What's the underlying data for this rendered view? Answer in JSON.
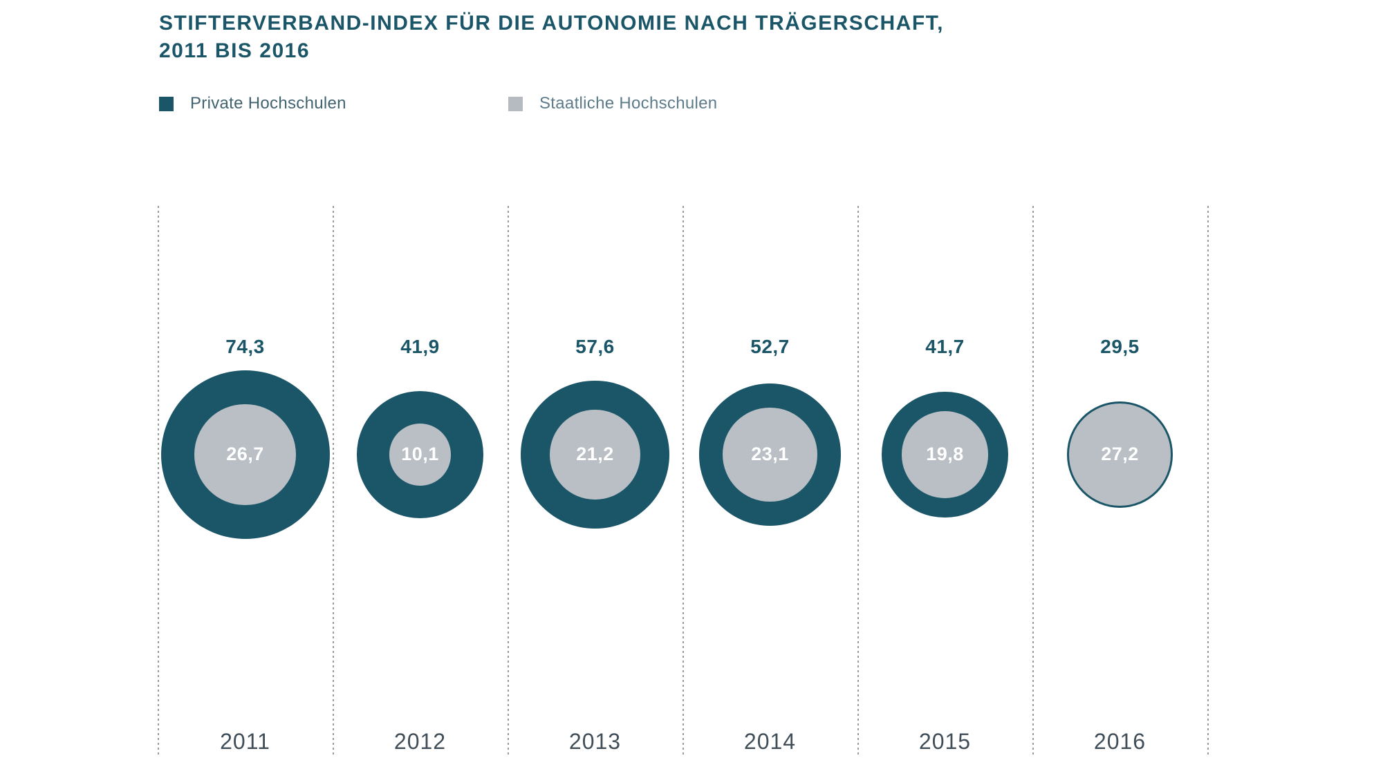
{
  "title": {
    "line1": "STIFTERVERBAND-INDEX FÜR DIE AUTONOMIE NACH TRÄGERSCHAFT,",
    "line2": "2011 BIS 2016"
  },
  "legend": {
    "items": [
      {
        "label": "Private Hochschulen",
        "color": "#1a5568",
        "text_color": "#41626f"
      },
      {
        "label": "Staatliche Hochschulen",
        "color": "#b5bbc1",
        "text_color": "#5d7b8a"
      }
    ]
  },
  "chart_data": {
    "type": "bubble",
    "variant": "nested-circles-per-category",
    "title": "STIFTERVERBAND-INDEX FÜR DIE AUTONOMIE NACH TRÄGERSCHAFT, 2011 BIS 2016",
    "categories": [
      "2011",
      "2012",
      "2013",
      "2014",
      "2015",
      "2016"
    ],
    "series": [
      {
        "name": "Private Hochschulen",
        "color": "#1a5568",
        "values": [
          74.3,
          41.9,
          57.6,
          52.7,
          41.7,
          29.5
        ],
        "value_labels": [
          "74,3",
          "41,9",
          "57,6",
          "52,7",
          "41,7",
          "29,5"
        ]
      },
      {
        "name": "Staatliche Hochschulen",
        "color": "#b9bfc4",
        "values": [
          26.7,
          10.1,
          21.2,
          23.1,
          19.8,
          27.2
        ],
        "value_labels": [
          "26,7",
          "10,1",
          "21,2",
          "23,1",
          "19,8",
          "27,2"
        ]
      }
    ],
    "radius_scale": {
      "mode": "area-proportional",
      "max_value": 74.3,
      "max_radius_px": 122
    },
    "grid": "dotted-vertical-separators",
    "legend_position": "top-left",
    "outer_value_label_color": "#1a5568",
    "inner_value_label_color": "#ffffff",
    "gridline_color": "#97999b",
    "year_label_color": "#414e57"
  }
}
